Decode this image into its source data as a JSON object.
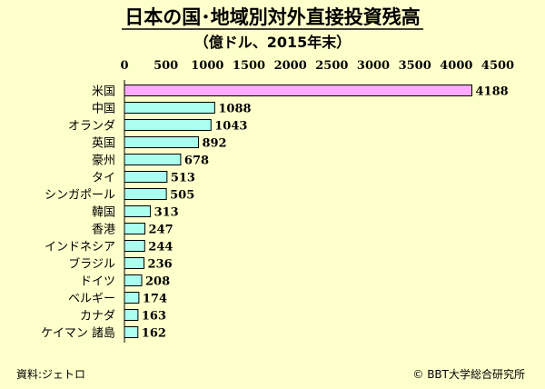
{
  "chart_data": {
    "type": "bar",
    "orientation": "horizontal",
    "title": "日本の国･地域別対外直接投資残高",
    "subtitle": "（億ドル、2015年末）",
    "categories": [
      "米国",
      "中国",
      "オランダ",
      "英国",
      "豪州",
      "タイ",
      "シンガポール",
      "韓国",
      "香港",
      "インドネシア",
      "ブラジル",
      "ドイツ",
      "ベルギー",
      "カナダ",
      "ケイマン 諸島"
    ],
    "values": [
      4188,
      1088,
      1043,
      892,
      678,
      513,
      505,
      313,
      247,
      244,
      236,
      208,
      174,
      163,
      162
    ],
    "highlight_index": 0,
    "x_ticks": [
      0,
      500,
      1000,
      1500,
      2000,
      2500,
      3000,
      3500,
      4000,
      4500
    ],
    "xlim": [
      0,
      4500
    ],
    "axis_position": "top",
    "grid": false,
    "legend": "none",
    "colors": {
      "highlight": "#ffaaff",
      "bar": "#aaffee",
      "stroke": "#000000"
    }
  },
  "footer": {
    "source": "資料:ジェトロ",
    "copyright": "© BBT大学総合研究所"
  }
}
